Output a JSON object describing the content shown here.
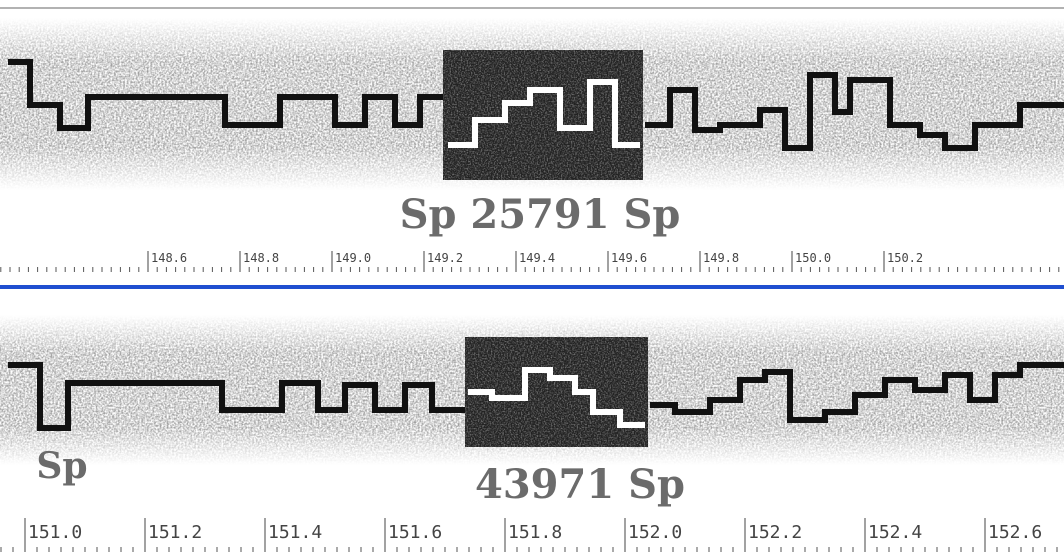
{
  "panels": [
    {
      "caption": "Sp 25791 Sp",
      "ruler": [
        "148.6",
        "148.8",
        "149.0",
        "149.2",
        "149.4",
        "149.6",
        "149.8",
        "150.0",
        "150.2"
      ]
    },
    {
      "left_label": "Sp",
      "caption": "43971 Sp",
      "ruler": [
        "151.0",
        "151.2",
        "151.4",
        "151.6",
        "151.8",
        "152.0",
        "152.2",
        "152.4",
        "152.6"
      ]
    }
  ]
}
